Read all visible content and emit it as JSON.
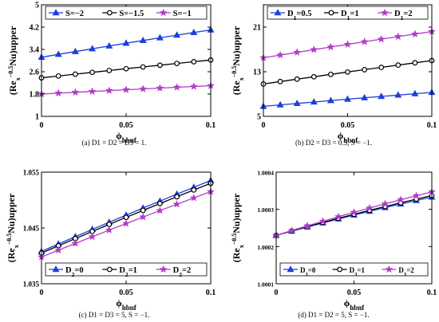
{
  "panels": [
    {
      "caption": "(a)  D1 = D2 = D3 = 1.",
      "chart_data": {
        "type": "line",
        "ylabel": "(Re_x^-0.5 Nu)upper",
        "xlabel": "ϕ_hbnf",
        "xlim": [
          0,
          0.1
        ],
        "ylim": [
          1,
          5
        ],
        "xticks": [
          0,
          0.05,
          0.1
        ],
        "xtick_labels": [
          "0",
          "0.05",
          "0.1"
        ],
        "yticks": [
          1,
          1.8,
          2.6,
          3.4,
          4.2,
          5
        ],
        "ytick_labels": [
          "1",
          "1.8",
          "2.6",
          "3.4",
          "4.2",
          "5"
        ],
        "legend_position": "top",
        "series": [
          {
            "name": "S=−2",
            "marker": "triangle",
            "color": "#1f3fd8",
            "x": [
              0,
              0.1
            ],
            "y": [
              3.12,
              4.1
            ]
          },
          {
            "name": "S=−1.5",
            "marker": "circle",
            "color": "#000000",
            "x": [
              0,
              0.1
            ],
            "y": [
              2.38,
              3.02
            ]
          },
          {
            "name": "S=−1",
            "marker": "star",
            "color": "#b03cc8",
            "x": [
              0,
              0.1
            ],
            "y": [
              1.8,
              2.1
            ]
          }
        ]
      }
    },
    {
      "caption": "(b)  D2 = D3 = 0.5,  S = −1.",
      "chart_data": {
        "type": "line",
        "ylabel": "(Re_x^-0.5 Nu)upper",
        "xlabel": "ϕ_hbnf",
        "xlim": [
          0,
          0.1
        ],
        "ylim": [
          5,
          25
        ],
        "xticks": [
          0,
          0.05,
          0.1
        ],
        "xtick_labels": [
          "0",
          "0.05",
          "0.1"
        ],
        "yticks": [
          5,
          13,
          21
        ],
        "ytick_labels": [
          "5",
          "13",
          "21"
        ],
        "legend_position": "top",
        "series": [
          {
            "name": "D1=0.5",
            "marker": "triangle",
            "color": "#1f3fd8",
            "x": [
              0,
              0.1
            ],
            "y": [
              6.8,
              9.3
            ]
          },
          {
            "name": "D1=1",
            "marker": "circle",
            "color": "#000000",
            "x": [
              0,
              0.1
            ],
            "y": [
              10.8,
              15.0
            ]
          },
          {
            "name": "D1=2",
            "marker": "star",
            "color": "#b03cc8",
            "x": [
              0,
              0.1
            ],
            "y": [
              15.5,
              20.2
            ]
          }
        ]
      }
    },
    {
      "caption": "(c)  D1 = D3 = 5,  S = −1.",
      "chart_data": {
        "type": "line",
        "ylabel": "(Re_x^-0.5 Nu)upper",
        "xlabel": "ϕ_hbnf",
        "xlim": [
          0,
          0.1
        ],
        "ylim": [
          1.035,
          1.055
        ],
        "xticks": [
          0,
          0.05,
          0.1
        ],
        "xtick_labels": [
          "0",
          "0.05",
          "0.1"
        ],
        "yticks": [
          1.035,
          1.045,
          1.055
        ],
        "ytick_labels": [
          "1.035",
          "1.045",
          "1.055"
        ],
        "legend_position": "bottom",
        "series": [
          {
            "name": "D2=0",
            "marker": "triangle",
            "color": "#1f3fd8",
            "x": [
              0,
              0.1
            ],
            "y": [
              1.0408,
              1.0535
            ]
          },
          {
            "name": "D2=1",
            "marker": "circle",
            "color": "#000000",
            "x": [
              0,
              0.1
            ],
            "y": [
              1.0405,
              1.053
            ]
          },
          {
            "name": "D2=2",
            "marker": "star",
            "color": "#b03cc8",
            "x": [
              0,
              0.1
            ],
            "y": [
              1.0398,
              1.0515
            ]
          }
        ]
      }
    },
    {
      "caption": "(d)  D1 = D2 = 5,  S = −1.",
      "chart_data": {
        "type": "line",
        "ylabel": "(Re_x^-0.5 Nu)upper",
        "xlabel": "ϕ_hbnf",
        "xlim": [
          0,
          0.1
        ],
        "ylim": [
          1.0001,
          1.0004
        ],
        "xticks": [
          0,
          0.05,
          0.1
        ],
        "xtick_labels": [
          "0",
          "0.05",
          "0.1"
        ],
        "yticks": [
          1.0001,
          1.0002,
          1.0003,
          1.0004
        ],
        "ytick_labels": [
          "1.0001",
          "1.0002",
          "1.0003",
          "1.0004"
        ],
        "legend_position": "bottom",
        "series": [
          {
            "name": "D3=0",
            "marker": "triangle",
            "color": "#1f3fd8",
            "x": [
              0,
              0.1
            ],
            "y": [
              1.00023,
              1.000333
            ]
          },
          {
            "name": "D3=1",
            "marker": "circle",
            "color": "#000000",
            "x": [
              0,
              0.1
            ],
            "y": [
              1.00023,
              1.000337
            ]
          },
          {
            "name": "D3=2",
            "marker": "star",
            "color": "#b03cc8",
            "x": [
              0,
              0.1
            ],
            "y": [
              1.00023,
              1.000347
            ]
          }
        ]
      }
    }
  ]
}
